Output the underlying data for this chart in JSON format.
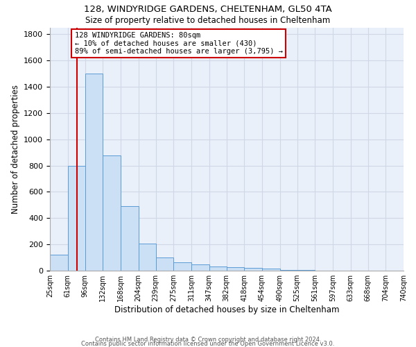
{
  "title1": "128, WINDYRIDGE GARDENS, CHELTENHAM, GL50 4TA",
  "title2": "Size of property relative to detached houses in Cheltenham",
  "xlabel": "Distribution of detached houses by size in Cheltenham",
  "ylabel": "Number of detached properties",
  "footnote1": "Contains HM Land Registry data © Crown copyright and database right 2024.",
  "footnote2": "Contains public sector information licensed under the Open Government Licence v3.0.",
  "bar_color": "#cce0f5",
  "bar_edge_color": "#5b9bd5",
  "grid_color": "#d0d8e8",
  "background_color": "#eaf0f9",
  "annotation_box_color": "#cc0000",
  "property_line_color": "#cc0000",
  "bins": [
    25,
    61,
    96,
    132,
    168,
    204,
    239,
    275,
    311,
    347,
    382,
    418,
    454,
    490,
    525,
    561,
    597,
    633,
    668,
    704,
    740
  ],
  "bin_labels": [
    "25sqm",
    "61sqm",
    "96sqm",
    "132sqm",
    "168sqm",
    "204sqm",
    "239sqm",
    "275sqm",
    "311sqm",
    "347sqm",
    "382sqm",
    "418sqm",
    "454sqm",
    "490sqm",
    "525sqm",
    "561sqm",
    "597sqm",
    "633sqm",
    "668sqm",
    "704sqm",
    "740sqm"
  ],
  "counts": [
    120,
    800,
    1500,
    880,
    490,
    205,
    100,
    65,
    45,
    30,
    25,
    20,
    15,
    5,
    3,
    2,
    2,
    1,
    1,
    1,
    0
  ],
  "ylim": [
    0,
    1850
  ],
  "yticks": [
    0,
    200,
    400,
    600,
    800,
    1000,
    1200,
    1400,
    1600,
    1800
  ],
  "annotation_text": "128 WINDYRIDGE GARDENS: 80sqm\n← 10% of detached houses are smaller (430)\n89% of semi-detached houses are larger (3,795) →",
  "property_line_x": 80
}
